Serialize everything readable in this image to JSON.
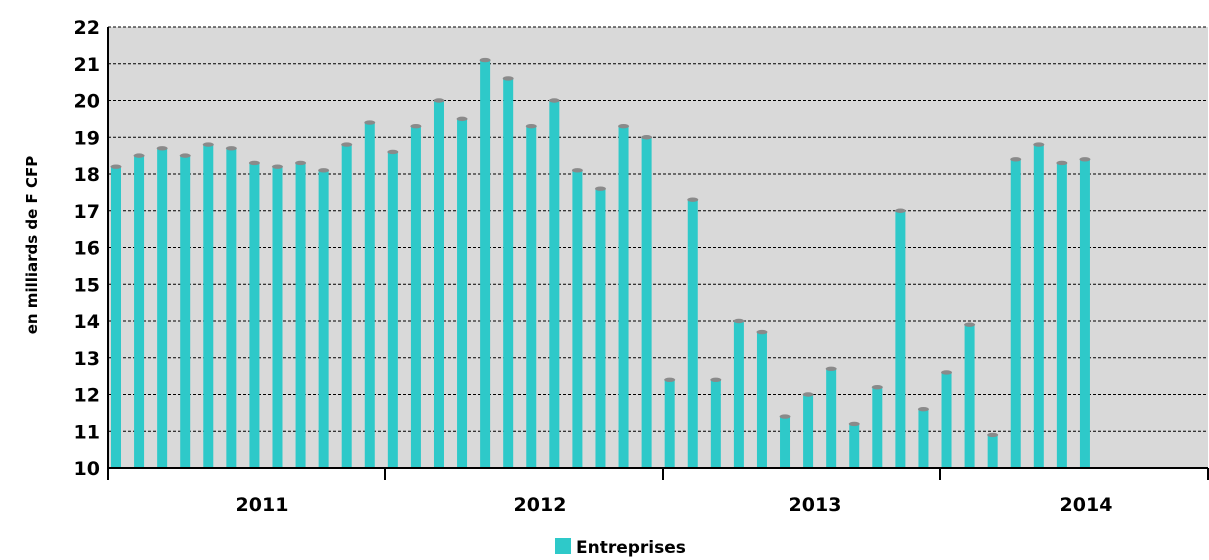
{
  "chart_data": {
    "type": "bar",
    "title": "",
    "ylabel": "en  milliards de F CFP",
    "xlabel": "",
    "ylim": [
      10,
      22
    ],
    "yticks": [
      10,
      11,
      12,
      13,
      14,
      15,
      16,
      17,
      18,
      19,
      20,
      21,
      22
    ],
    "grid": true,
    "legend_position": "bottom",
    "year_labels": [
      "2011",
      "2012",
      "2013",
      "2014"
    ],
    "series": [
      {
        "name": "Entreprises",
        "color": "#2ec9c9",
        "values": [
          18.2,
          18.5,
          18.7,
          18.5,
          18.8,
          18.7,
          18.3,
          18.2,
          18.3,
          18.1,
          18.8,
          19.4,
          18.6,
          19.3,
          20.0,
          19.5,
          21.1,
          20.6,
          19.3,
          20.0,
          18.1,
          17.6,
          19.3,
          19.0,
          12.4,
          17.3,
          12.4,
          14.0,
          13.7,
          11.4,
          12.0,
          12.7,
          11.2,
          12.2,
          17.0,
          11.6,
          12.6,
          13.9,
          10.9,
          18.4,
          18.8,
          18.3,
          18.4
        ]
      }
    ]
  }
}
